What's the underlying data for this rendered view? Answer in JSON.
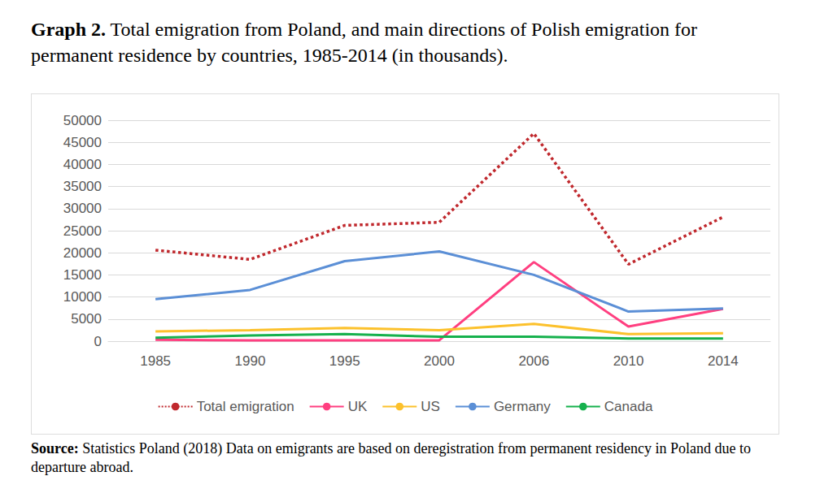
{
  "chart_data": {
    "type": "line",
    "title": "Graph 2. Total emigration from Poland, and main directions of Polish emigration for permanent residence by countries, 1985-2014 (in thousands).",
    "source": "Source: Statistics Poland (2018) Data on emigrants are based on deregistration from permanent residency in Poland due to departure abroad.",
    "categories": [
      "1985",
      "1990",
      "1995",
      "2000",
      "2006",
      "2010",
      "2014"
    ],
    "series": [
      {
        "name": "Total emigration",
        "color": "#c0282d",
        "line_style": "dotted",
        "values": [
          20600,
          18500,
          26200,
          26900,
          47000,
          17400,
          28100
        ]
      },
      {
        "name": "UK",
        "color": "#ff3f80",
        "line_style": "solid",
        "values": [
          300,
          200,
          200,
          200,
          17900,
          3300,
          7300
        ]
      },
      {
        "name": "US",
        "color": "#fcc12c",
        "line_style": "solid",
        "values": [
          2200,
          2500,
          3000,
          2500,
          3900,
          1600,
          1800
        ]
      },
      {
        "name": "Germany",
        "color": "#5b8fd6",
        "line_style": "solid",
        "values": [
          9500,
          11600,
          18100,
          20300,
          15000,
          6700,
          7400
        ]
      },
      {
        "name": "Canada",
        "color": "#16b14d",
        "line_style": "solid",
        "values": [
          800,
          1300,
          1600,
          1000,
          1000,
          600,
          600
        ]
      }
    ],
    "ylim": [
      0,
      50000
    ],
    "yticks": [
      0,
      5000,
      10000,
      15000,
      20000,
      25000,
      30000,
      35000,
      40000,
      45000,
      50000
    ],
    "grid": true,
    "legend": "bottom"
  }
}
